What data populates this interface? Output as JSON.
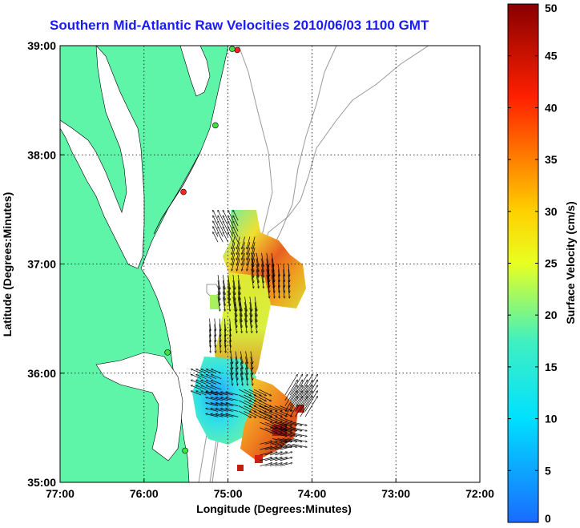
{
  "title": "Southern Mid-Atlantic Raw Velocities 2010/06/03 1100 GMT",
  "colors": {
    "land": "#5ff5a8",
    "water": "#ffffff",
    "contour": "#999999",
    "coast": "#000000",
    "title": "#1a1aff"
  },
  "chart_data": {
    "type": "map",
    "xlabel": "Longitude (Degrees:Minutes)",
    "ylabel": "Latitude (Degrees:Minutes)",
    "xlim": [
      -77,
      -72
    ],
    "ylim": [
      35,
      39
    ],
    "x_ticks": [
      -77,
      -76,
      -75,
      -74,
      -73,
      -72
    ],
    "x_tick_labels": [
      "77:00",
      "76:00",
      "75:00",
      "74:00",
      "73:00",
      "72:00"
    ],
    "y_ticks": [
      35,
      36,
      37,
      38,
      39
    ],
    "y_tick_labels": [
      "35:00",
      "36:00",
      "37:00",
      "38:00",
      "39:00"
    ],
    "grid": true,
    "colorbar": {
      "label": "Surface Velocity (cm/s)",
      "min": 0,
      "max": 50,
      "ticks": [
        0,
        5,
        10,
        15,
        20,
        25,
        30,
        35,
        40,
        45,
        50
      ],
      "tick_labels": [
        "0",
        "5",
        "10",
        "15",
        "20",
        "25",
        "30",
        "35",
        "40",
        "45",
        "50"
      ]
    },
    "stations": [
      {
        "lon": -74.89,
        "lat": 38.96,
        "color": "#ff2020"
      },
      {
        "lon": -74.95,
        "lat": 38.97,
        "color": "#40e040"
      },
      {
        "lon": -75.15,
        "lat": 38.27,
        "color": "#40e040"
      },
      {
        "lon": -75.53,
        "lat": 37.66,
        "color": "#ff2020"
      },
      {
        "lon": -75.72,
        "lat": 36.19,
        "color": "#40e040"
      },
      {
        "lon": -75.51,
        "lat": 35.29,
        "color": "#40e040"
      }
    ],
    "velocity_field": [
      {
        "lon": -75.0,
        "lat": 37.3,
        "u": -0.05,
        "v": 0.1,
        "speed": 20
      },
      {
        "lon": -74.8,
        "lat": 37.15,
        "u": -0.03,
        "v": -0.12,
        "speed": 33
      },
      {
        "lon": -74.6,
        "lat": 37.0,
        "u": 0.02,
        "v": -0.13,
        "speed": 28
      },
      {
        "lon": -74.4,
        "lat": 36.9,
        "u": 0.01,
        "v": -0.12,
        "speed": 22
      },
      {
        "lon": -75.0,
        "lat": 36.8,
        "u": 0.02,
        "v": -0.14,
        "speed": 24
      },
      {
        "lon": -74.8,
        "lat": 36.6,
        "u": 0.02,
        "v": -0.14,
        "speed": 26
      },
      {
        "lon": -75.1,
        "lat": 36.4,
        "u": 0.01,
        "v": -0.12,
        "speed": 22
      },
      {
        "lon": -74.85,
        "lat": 36.1,
        "u": 0.02,
        "v": -0.12,
        "speed": 33
      },
      {
        "lon": -75.2,
        "lat": 35.9,
        "u": -0.1,
        "v": 0.04,
        "speed": 13
      },
      {
        "lon": -75.0,
        "lat": 35.7,
        "u": -0.12,
        "v": 0.03,
        "speed": 9
      },
      {
        "lon": -74.75,
        "lat": 35.75,
        "u": 0.12,
        "v": -0.06,
        "speed": 28
      },
      {
        "lon": -74.5,
        "lat": 35.6,
        "u": 0.12,
        "v": -0.05,
        "speed": 35
      },
      {
        "lon": -74.35,
        "lat": 35.45,
        "u": 0.14,
        "v": -0.03,
        "speed": 40
      },
      {
        "lon": -74.2,
        "lat": 35.7,
        "u": 0.12,
        "v": 0.2,
        "speed": 15
      },
      {
        "lon": -74.5,
        "lat": 35.25,
        "u": 0.12,
        "v": 0.03,
        "speed": 18
      }
    ]
  }
}
